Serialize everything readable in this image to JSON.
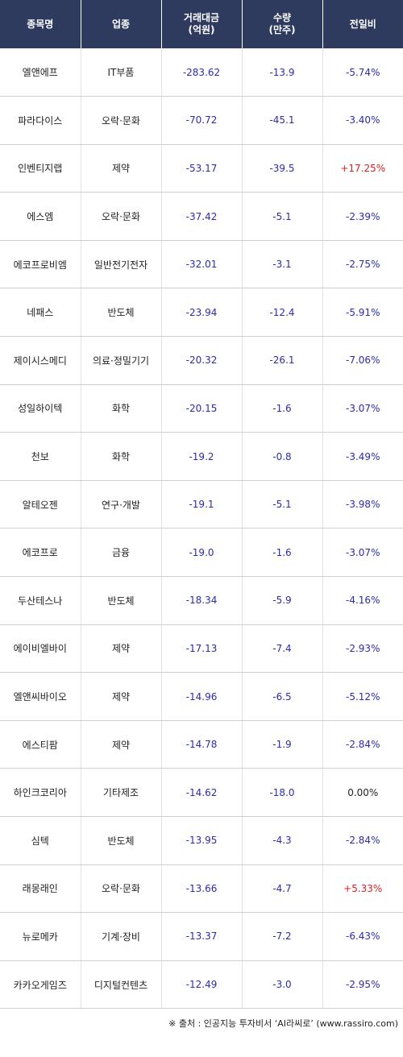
{
  "header": {
    "col1": "종목명",
    "col2": "업종",
    "col3_line1": "거래대금",
    "col3_line2": "(억원)",
    "col4_line1": "수량",
    "col4_line2": "(만주)",
    "col5": "전일비"
  },
  "colors": {
    "header_bg": "#2f3a5f",
    "negative": "#2b2bb0",
    "positive": "#d42222"
  },
  "rows": [
    {
      "name": "엘앤에프",
      "sector": "IT부품",
      "amount": "-283.62",
      "qty": "-13.9",
      "change": "-5.74%",
      "dir": "down"
    },
    {
      "name": "파라다이스",
      "sector": "오락·문화",
      "amount": "-70.72",
      "qty": "-45.1",
      "change": "-3.40%",
      "dir": "down"
    },
    {
      "name": "인벤티지랩",
      "sector": "제약",
      "amount": "-53.17",
      "qty": "-39.5",
      "change": "+17.25%",
      "dir": "up"
    },
    {
      "name": "에스엠",
      "sector": "오락·문화",
      "amount": "-37.42",
      "qty": "-5.1",
      "change": "-2.39%",
      "dir": "down"
    },
    {
      "name": "에코프로비엠",
      "sector": "일반전기전자",
      "amount": "-32.01",
      "qty": "-3.1",
      "change": "-2.75%",
      "dir": "down"
    },
    {
      "name": "네패스",
      "sector": "반도체",
      "amount": "-23.94",
      "qty": "-12.4",
      "change": "-5.91%",
      "dir": "down"
    },
    {
      "name": "제이시스메디",
      "sector": "의료·정밀기기",
      "amount": "-20.32",
      "qty": "-26.1",
      "change": "-7.06%",
      "dir": "down"
    },
    {
      "name": "성일하이텍",
      "sector": "화학",
      "amount": "-20.15",
      "qty": "-1.6",
      "change": "-3.07%",
      "dir": "down"
    },
    {
      "name": "천보",
      "sector": "화학",
      "amount": "-19.2",
      "qty": "-0.8",
      "change": "-3.49%",
      "dir": "down"
    },
    {
      "name": "알테오젠",
      "sector": "연구·개발",
      "amount": "-19.1",
      "qty": "-5.1",
      "change": "-3.98%",
      "dir": "down"
    },
    {
      "name": "에코프로",
      "sector": "금융",
      "amount": "-19.0",
      "qty": "-1.6",
      "change": "-3.07%",
      "dir": "down"
    },
    {
      "name": "두산테스나",
      "sector": "반도체",
      "amount": "-18.34",
      "qty": "-5.9",
      "change": "-4.16%",
      "dir": "down"
    },
    {
      "name": "에이비엘바이",
      "sector": "제약",
      "amount": "-17.13",
      "qty": "-7.4",
      "change": "-2.93%",
      "dir": "down"
    },
    {
      "name": "엘앤씨바이오",
      "sector": "제약",
      "amount": "-14.96",
      "qty": "-6.5",
      "change": "-5.12%",
      "dir": "down"
    },
    {
      "name": "에스티팜",
      "sector": "제약",
      "amount": "-14.78",
      "qty": "-1.9",
      "change": "-2.84%",
      "dir": "down"
    },
    {
      "name": "하인크코리아",
      "sector": "기타제조",
      "amount": "-14.62",
      "qty": "-18.0",
      "change": "0.00%",
      "dir": "zero"
    },
    {
      "name": "심텍",
      "sector": "반도체",
      "amount": "-13.95",
      "qty": "-4.3",
      "change": "-2.84%",
      "dir": "down"
    },
    {
      "name": "래몽래인",
      "sector": "오락·문화",
      "amount": "-13.66",
      "qty": "-4.7",
      "change": "+5.33%",
      "dir": "up"
    },
    {
      "name": "뉴로메카",
      "sector": "기계·장비",
      "amount": "-13.37",
      "qty": "-7.2",
      "change": "-6.43%",
      "dir": "down"
    },
    {
      "name": "카카오게임즈",
      "sector": "디지털컨텐츠",
      "amount": "-12.49",
      "qty": "-3.0",
      "change": "-2.95%",
      "dir": "down"
    }
  ],
  "footer": {
    "source": "※ 출처 : 인공지능 투자비서 ‘AI라씨로’ (www.rassiro.com)"
  }
}
